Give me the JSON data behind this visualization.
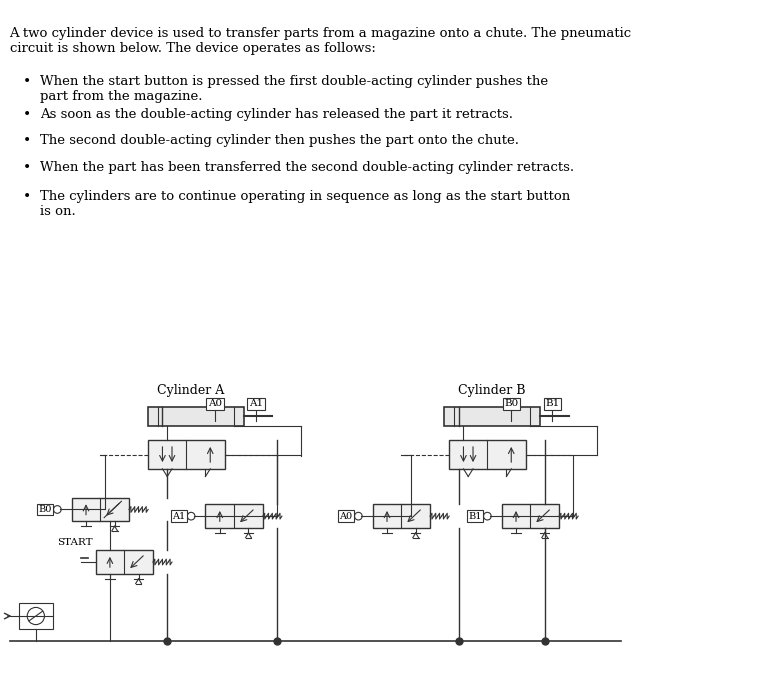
{
  "bg_color": "#ffffff",
  "text_color": "#000000",
  "fig_width": 7.71,
  "fig_height": 6.73,
  "title_text": "A two cylinder device is used to transfer parts from a magazine onto a chute. The pneumatic\ncircuit is shown below. The device operates as follows:",
  "bullets": [
    "When the start button is pressed the first double-acting cylinder pushes the\npart from the magazine.",
    "As soon as the double-acting cylinder has released the part it retracts.",
    "The second double-acting cylinder then pushes the part onto the chute.",
    "When the part has been transferred the second double-acting cylinder retracts.",
    "The cylinders are to continue operating in sequence as long as the start button\nis on."
  ],
  "cyl_a_label": "Cylinder A",
  "cyl_b_label": "Cylinder B",
  "label_A0": "A0",
  "label_A1": "A1",
  "label_B0": "B0",
  "label_B1": "B1",
  "start_label": "START",
  "line_color": "#333333",
  "box_color": "#cccccc",
  "font_size_body": 9.5,
  "font_size_small": 7.5
}
